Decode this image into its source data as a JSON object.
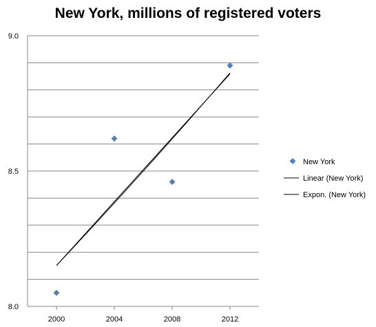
{
  "chart_data": {
    "type": "scatter",
    "title": "New York, millions of registered voters",
    "xlabel": "",
    "ylabel": "",
    "x": [
      2000,
      2004,
      2008,
      2012
    ],
    "x_tick_labels": [
      "2000",
      "2004",
      "2008",
      "2012"
    ],
    "xlim": [
      1998,
      2014
    ],
    "ylim": [
      8.0,
      9.0
    ],
    "y_tick_labels": [
      "8.0",
      "8.5",
      "9.0"
    ],
    "grid": "horizontal",
    "legend_position": "right",
    "series": [
      {
        "name": "New York",
        "kind": "markers",
        "marker": "diamond",
        "color": "#4F81BD",
        "y": [
          8.05,
          8.62,
          8.46,
          8.89
        ]
      }
    ],
    "trendlines": [
      {
        "name": "Linear (New York)",
        "kind": "linear",
        "color": "#000000"
      },
      {
        "name": "Expon. (New York)",
        "kind": "exponential",
        "color": "#000000"
      }
    ]
  }
}
